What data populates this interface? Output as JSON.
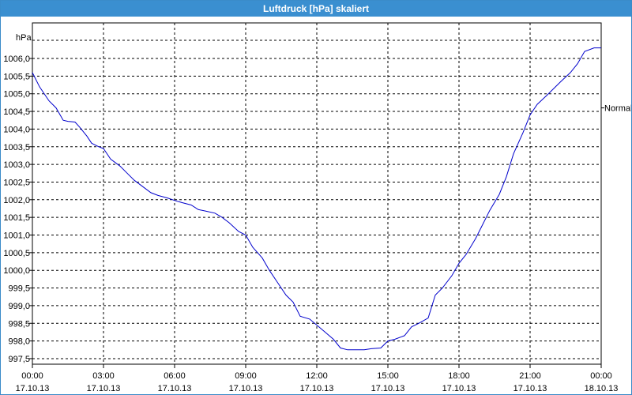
{
  "window": {
    "title": "Luftdruck [hPa] skaliert"
  },
  "chart_data": {
    "type": "line",
    "title": "Luftdruck [hPa] skaliert",
    "ylabel": "hPa",
    "xlabel": "",
    "ylim": [
      997.5,
      1006.3
    ],
    "xlim_hours": [
      0,
      24
    ],
    "grid": true,
    "y_ticks": [
      "1006,0",
      "1005,5",
      "1005,0",
      "1004,5",
      "1004,0",
      "1003,5",
      "1003,0",
      "1002,5",
      "1002,0",
      "1001,5",
      "1001,0",
      "1000,5",
      "1000,0",
      "999,5",
      "999,0",
      "998,5",
      "998,0",
      "997,5"
    ],
    "x_ticks": [
      {
        "time": "00:00",
        "date": "17.10.13"
      },
      {
        "time": "03:00",
        "date": "17.10.13"
      },
      {
        "time": "06:00",
        "date": "17.10.13"
      },
      {
        "time": "09:00",
        "date": "17.10.13"
      },
      {
        "time": "12:00",
        "date": "17.10.13"
      },
      {
        "time": "15:00",
        "date": "17.10.13"
      },
      {
        "time": "18:00",
        "date": "17.10.13"
      },
      {
        "time": "21:00",
        "date": "17.10.13"
      },
      {
        "time": "00:00",
        "date": "18.10.13"
      }
    ],
    "reference_line": {
      "label": "Normal",
      "value": 1004.6
    },
    "series": [
      {
        "color": "#0000cc",
        "x": [
          0,
          0.3,
          0.7,
          1,
          1.3,
          1.5,
          1.8,
          2,
          2.3,
          2.5,
          2.8,
          3,
          3.3,
          3.7,
          4,
          4.3,
          4.7,
          5,
          5.3,
          5.7,
          6,
          6.3,
          6.7,
          7,
          7.3,
          7.7,
          8,
          8.3,
          8.7,
          9,
          9.3,
          9.7,
          10,
          10.3,
          10.7,
          11,
          11.3,
          11.7,
          12,
          12.3,
          12.7,
          13,
          13.3,
          13.7,
          14,
          14.3,
          14.7,
          15,
          15.3,
          15.7,
          16,
          16.3,
          16.7,
          17,
          17.3,
          17.7,
          18,
          18.3,
          18.7,
          19,
          19.3,
          19.7,
          20,
          20.3,
          20.7,
          21,
          21.3,
          21.7,
          22,
          22.3,
          22.7,
          23,
          23.3,
          23.7,
          24
        ],
        "values": [
          1005.6,
          1005.2,
          1004.8,
          1004.6,
          1004.25,
          1004.22,
          1004.2,
          1004.05,
          1003.8,
          1003.6,
          1003.5,
          1003.45,
          1003.15,
          1002.95,
          1002.75,
          1002.55,
          1002.35,
          1002.2,
          1002.12,
          1002.05,
          1001.98,
          1001.92,
          1001.85,
          1001.72,
          1001.68,
          1001.62,
          1001.5,
          1001.35,
          1001.1,
          1001.0,
          1000.65,
          1000.35,
          1000.0,
          999.7,
          999.3,
          999.1,
          998.7,
          998.62,
          998.45,
          998.28,
          998.05,
          997.8,
          997.75,
          997.75,
          997.75,
          997.78,
          997.8,
          998.0,
          998.05,
          998.15,
          998.4,
          998.5,
          998.65,
          999.3,
          999.5,
          999.85,
          1000.2,
          1000.45,
          1000.9,
          1001.3,
          1001.7,
          1002.15,
          1002.65,
          1003.3,
          1003.9,
          1004.4,
          1004.7,
          1004.95,
          1005.15,
          1005.35,
          1005.6,
          1005.85,
          1006.2,
          1006.3,
          1006.3
        ]
      }
    ]
  }
}
